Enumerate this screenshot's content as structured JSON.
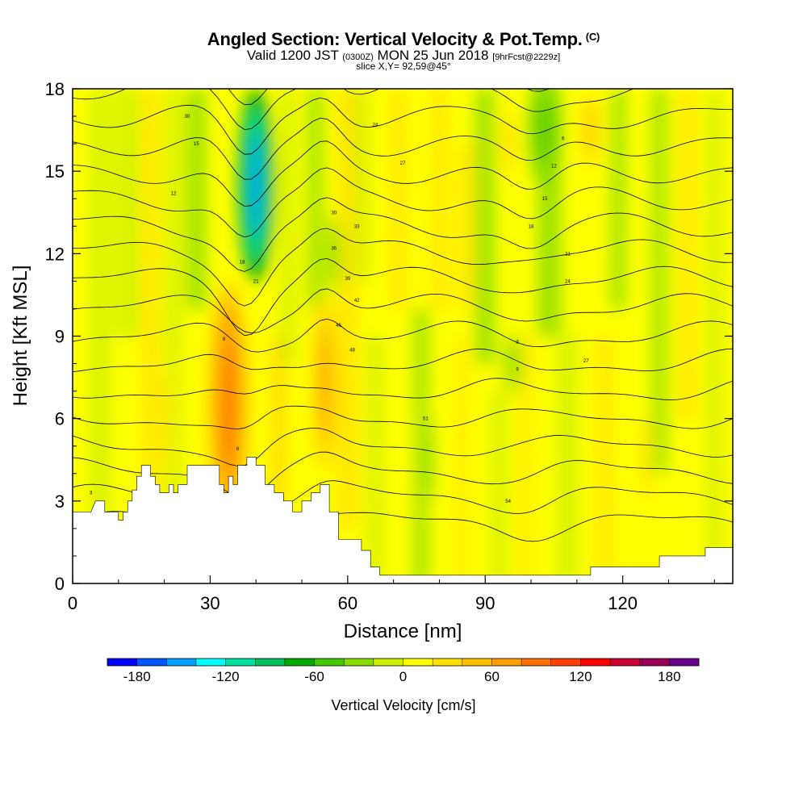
{
  "title": {
    "main": "Angled Section: Vertical Velocity & Pot.Temp.",
    "copyright": "(C)",
    "valid_prefix": "Valid 1200 JST",
    "valid_utc": "(0300Z)",
    "valid_date": "MON 25 Jun 2018",
    "forecast": "[9hrFcst@2229z]",
    "slice": "slice X,Y= 92,59@45°"
  },
  "colors": {
    "background_field": "#ffff00",
    "terrain": "#ffffff",
    "contour": "#000000"
  },
  "chart_data": {
    "type": "heatmap",
    "xlabel": "Distance [nm]",
    "ylabel": "Height [Kft MSL]",
    "xlim": [
      0,
      144
    ],
    "ylim": [
      0,
      18
    ],
    "x_ticks": [
      "0",
      "30",
      "60",
      "90",
      "120"
    ],
    "y_ticks": [
      "0",
      "3",
      "6",
      "9",
      "12",
      "15",
      "18"
    ],
    "colorbar": {
      "label": "Vertical Velocity [cm/s]",
      "range": [
        -200,
        200
      ],
      "tick_labels": [
        "-180",
        "-120",
        "-60",
        "0",
        "60",
        "120",
        "180"
      ],
      "tick_values": [
        -180,
        -120,
        -60,
        0,
        60,
        120,
        180
      ],
      "colors": [
        "#0000ff",
        "#0055ff",
        "#00a0ff",
        "#00ffff",
        "#00e0a0",
        "#00c060",
        "#00aa00",
        "#44c800",
        "#88dd00",
        "#ccee00",
        "#ffff00",
        "#ffe000",
        "#ffc000",
        "#ffa000",
        "#ff7000",
        "#ff4000",
        "#ff0000",
        "#cc0033",
        "#990055",
        "#660088"
      ]
    },
    "terrain_height": [
      [
        0,
        2.6
      ],
      [
        4,
        2.6
      ],
      [
        5,
        3.0
      ],
      [
        7,
        3.0
      ],
      [
        7,
        2.6
      ],
      [
        10,
        2.6
      ],
      [
        10,
        2.3
      ],
      [
        11,
        2.3
      ],
      [
        11,
        2.6
      ],
      [
        12,
        2.6
      ],
      [
        12,
        3.0
      ],
      [
        13,
        3.0
      ],
      [
        13,
        3.4
      ],
      [
        14,
        3.4
      ],
      [
        14,
        3.9
      ],
      [
        15,
        3.9
      ],
      [
        15,
        4.3
      ],
      [
        17,
        4.3
      ],
      [
        17,
        3.9
      ],
      [
        18,
        3.9
      ],
      [
        18,
        3.6
      ],
      [
        19,
        3.6
      ],
      [
        19,
        3.3
      ],
      [
        21,
        3.3
      ],
      [
        21,
        3.6
      ],
      [
        22,
        3.6
      ],
      [
        22,
        3.3
      ],
      [
        23,
        3.3
      ],
      [
        23,
        3.6
      ],
      [
        25,
        3.6
      ],
      [
        25,
        4.3
      ],
      [
        32,
        4.3
      ],
      [
        32,
        3.6
      ],
      [
        33,
        3.6
      ],
      [
        33,
        3.3
      ],
      [
        34,
        3.3
      ],
      [
        34,
        3.9
      ],
      [
        35,
        3.9
      ],
      [
        35,
        3.6
      ],
      [
        36,
        3.6
      ],
      [
        36,
        4.3
      ],
      [
        38,
        4.3
      ],
      [
        38,
        4.6
      ],
      [
        40,
        4.6
      ],
      [
        40,
        4.3
      ],
      [
        42,
        4.3
      ],
      [
        42,
        3.6
      ],
      [
        44,
        3.6
      ],
      [
        44,
        3.3
      ],
      [
        46,
        3.3
      ],
      [
        46,
        3.0
      ],
      [
        48,
        3.0
      ],
      [
        48,
        2.6
      ],
      [
        50,
        2.6
      ],
      [
        50,
        3.0
      ],
      [
        52,
        3.0
      ],
      [
        52,
        3.3
      ],
      [
        54,
        3.3
      ],
      [
        54,
        3.6
      ],
      [
        56,
        3.6
      ],
      [
        56,
        2.6
      ],
      [
        58,
        2.6
      ],
      [
        58,
        1.6
      ],
      [
        63,
        1.6
      ],
      [
        63,
        1.2
      ],
      [
        65,
        1.2
      ],
      [
        65,
        0.6
      ],
      [
        67,
        0.6
      ],
      [
        67,
        0.3
      ],
      [
        72,
        0.3
      ],
      [
        72,
        0.3
      ],
      [
        113,
        0.3
      ],
      [
        113,
        0.6
      ],
      [
        120,
        0.6
      ],
      [
        120,
        0.6
      ],
      [
        128,
        0.6
      ],
      [
        128,
        1.0
      ],
      [
        138,
        1.0
      ],
      [
        138,
        1.3
      ],
      [
        144,
        1.3
      ]
    ],
    "updraft_cores": [
      {
        "x": 34,
        "y": 6.5,
        "w": 90
      },
      {
        "x": 55,
        "y": 7.3,
        "w": 60
      },
      {
        "x": 20,
        "y": 6.0,
        "w": 30
      },
      {
        "x": 113,
        "y": 16.5,
        "w": 40
      },
      {
        "x": 95,
        "y": 16.0,
        "w": 35
      },
      {
        "x": 125,
        "y": 4.5,
        "w": 30
      }
    ],
    "downdraft_cores": [
      {
        "x": 40,
        "y": 14.5,
        "w": -150
      },
      {
        "x": 103,
        "y": 16.5,
        "w": -50
      },
      {
        "x": 77,
        "y": 4.5,
        "w": -40
      },
      {
        "x": 96,
        "y": 8.0,
        "w": -40
      },
      {
        "x": 57,
        "y": 12.0,
        "w": -35
      }
    ],
    "contour_labels": [
      "3",
      "9",
      "6",
      "12",
      "15",
      "18",
      "21",
      "24",
      "27",
      "30",
      "33",
      "36",
      "39",
      "42",
      "45",
      "48",
      "51",
      "54"
    ]
  }
}
